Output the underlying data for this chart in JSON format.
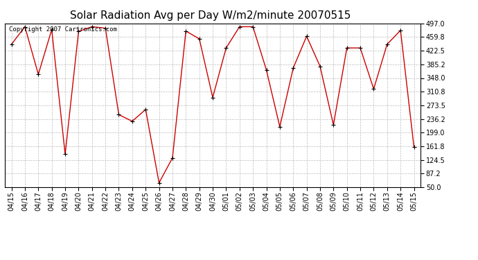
{
  "title": "Solar Radiation Avg per Day W/m2/minute 20070515",
  "copyright": "Copyright 2007 Cartronics.com",
  "labels": [
    "04/15",
    "04/16",
    "04/17",
    "04/18",
    "04/19",
    "04/20",
    "04/21",
    "04/22",
    "04/23",
    "04/24",
    "04/25",
    "04/26",
    "04/27",
    "04/28",
    "04/29",
    "04/30",
    "05/01",
    "05/02",
    "05/03",
    "05/04",
    "05/05",
    "05/06",
    "05/07",
    "05/08",
    "05/09",
    "05/10",
    "05/11",
    "05/12",
    "05/13",
    "05/14",
    "05/15"
  ],
  "values": [
    440,
    488,
    358,
    480,
    140,
    475,
    488,
    484,
    248,
    230,
    262,
    62,
    130,
    476,
    455,
    295,
    430,
    488,
    488,
    370,
    215,
    375,
    462,
    380,
    220,
    430,
    430,
    318,
    440,
    478,
    160
  ],
  "line_color": "#cc0000",
  "marker_color": "#000000",
  "bg_color": "#ffffff",
  "plot_bg_color": "#ffffff",
  "grid_color": "#bbbbbb",
  "yticks": [
    50.0,
    87.2,
    124.5,
    161.8,
    199.0,
    236.2,
    273.5,
    310.8,
    348.0,
    385.2,
    422.5,
    459.8,
    497.0
  ],
  "ylim": [
    50.0,
    497.0
  ],
  "title_fontsize": 11,
  "tick_fontsize": 7,
  "copyright_fontsize": 6.5
}
